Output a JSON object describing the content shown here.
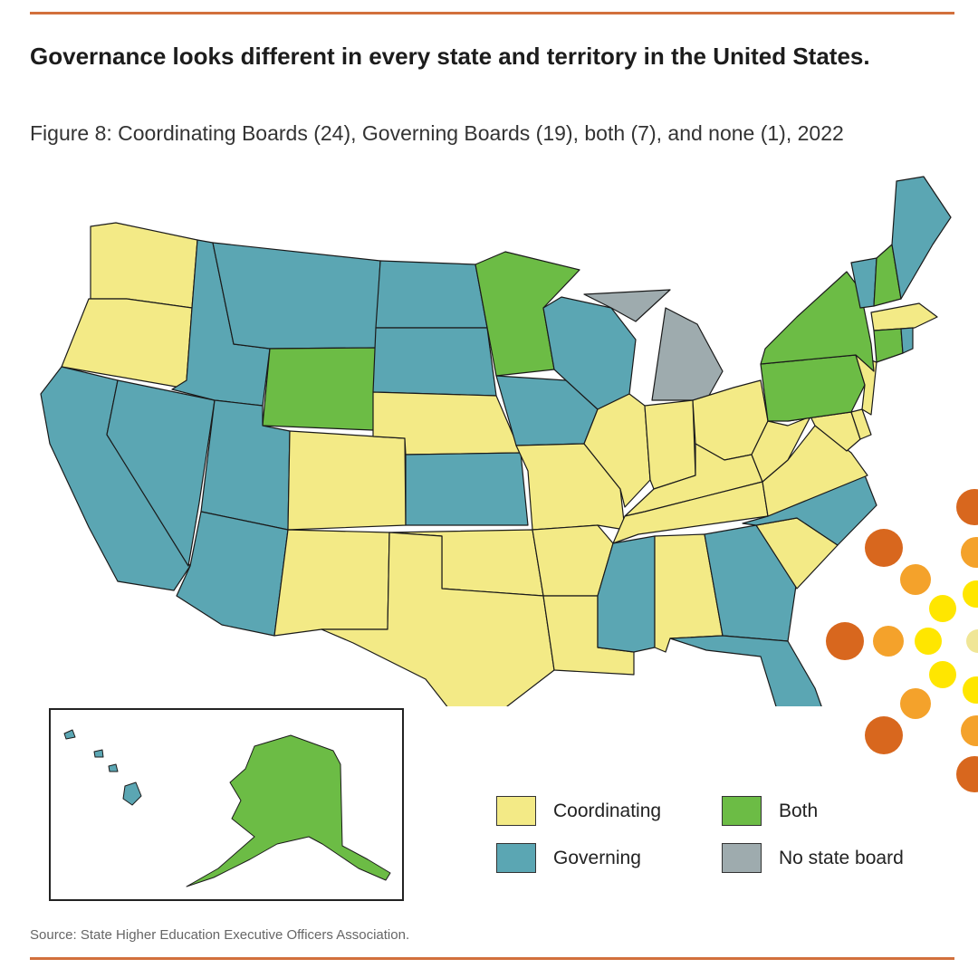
{
  "title": "Governance looks different in every state and territory in the United States.",
  "subtitle": "Figure 8: Coordinating Boards (24), Governing Boards (19), both (7), and none (1), 2022",
  "source": "Source: State Higher Education Executive Officers Association.",
  "legend": [
    {
      "label": "Coordinating",
      "category": "coordinating"
    },
    {
      "label": "Governing",
      "category": "governing"
    },
    {
      "label": "Both",
      "category": "both"
    },
    {
      "label": "No state board",
      "category": "none"
    }
  ],
  "colors": {
    "coordinating": "#f3ea86",
    "governing": "#5ba6b3",
    "both": "#6cbc45",
    "none": "#9eabae",
    "rule": "#d2703c",
    "dot_dark": "#d8671e",
    "dot_mid": "#f4a22b",
    "dot_light": "#ffe600",
    "dot_pale": "#f0e696"
  },
  "state_board_type": {
    "WA": "coordinating",
    "OR": "coordinating",
    "CA": "governing",
    "NV": "governing",
    "ID": "governing",
    "MT": "governing",
    "WY": "both",
    "UT": "governing",
    "AZ": "governing",
    "CO": "coordinating",
    "NM": "coordinating",
    "ND": "governing",
    "SD": "governing",
    "NE": "coordinating",
    "KS": "governing",
    "OK": "coordinating",
    "TX": "coordinating",
    "MN": "both",
    "IA": "governing",
    "MO": "coordinating",
    "AR": "coordinating",
    "LA": "coordinating",
    "WI": "governing",
    "IL": "coordinating",
    "MI": "none",
    "IN": "coordinating",
    "OH": "coordinating",
    "KY": "coordinating",
    "TN": "coordinating",
    "MS": "governing",
    "AL": "coordinating",
    "GA": "governing",
    "FL": "governing",
    "SC": "coordinating",
    "NC": "governing",
    "VA": "coordinating",
    "WV": "coordinating",
    "MD": "coordinating",
    "DE": "coordinating",
    "PA": "both",
    "NJ": "coordinating",
    "NY": "both",
    "CT": "both",
    "RI": "governing",
    "MA": "coordinating",
    "VT": "governing",
    "NH": "both",
    "ME": "governing",
    "AK": "both",
    "HI": "governing"
  }
}
